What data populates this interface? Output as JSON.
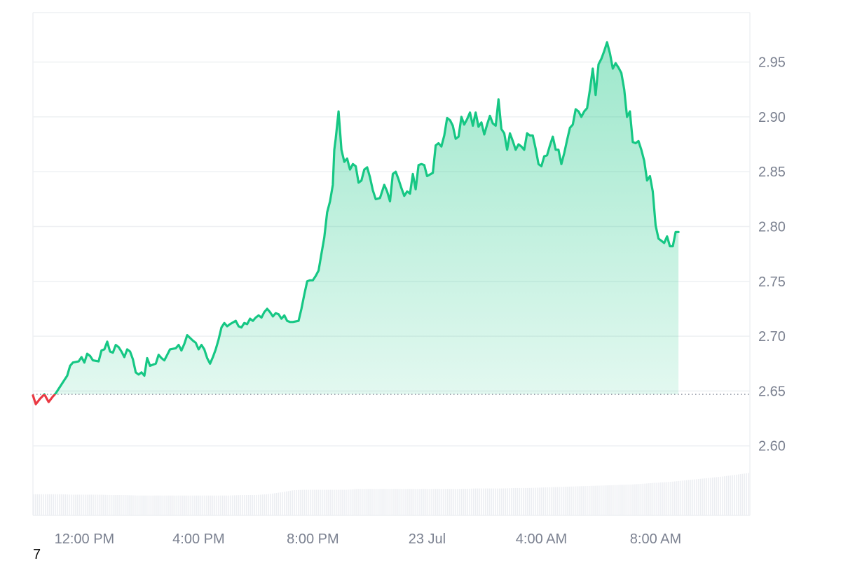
{
  "chart_data": {
    "type": "area",
    "y_ticks": [
      "2.95",
      "2.90",
      "2.85",
      "2.80",
      "2.75",
      "2.70",
      "2.65",
      "2.60"
    ],
    "x_ticks": [
      "12:00 PM",
      "4:00 PM",
      "8:00 PM",
      "23 Jul",
      "4:00 AM",
      "8:00 AM"
    ],
    "x_start_hours": 10.2,
    "x_end_hours": 35.3,
    "x_tick_hours": [
      12,
      16,
      20,
      24,
      28,
      32
    ],
    "ylim": [
      2.5366,
      2.9951
    ],
    "grid": true,
    "baseline": 2.647,
    "colors": {
      "up": "#16c784",
      "down": "#ea3943",
      "baseline": "#7b8190",
      "grid": "#eef0f3",
      "axis_text": "#7b8190",
      "volume": "#eceef2"
    },
    "volume_relative": [
      0.24,
      0.24,
      0.24,
      0.235,
      0.235,
      0.235,
      0.23,
      0.23,
      0.225,
      0.225,
      0.225,
      0.225,
      0.225,
      0.225,
      0.225,
      0.225,
      0.23,
      0.23,
      0.24,
      0.26,
      0.285,
      0.29,
      0.29,
      0.29,
      0.29,
      0.3,
      0.3,
      0.3,
      0.3,
      0.3,
      0.3,
      0.3,
      0.3,
      0.3,
      0.305,
      0.305,
      0.305,
      0.31,
      0.31,
      0.315,
      0.32,
      0.325,
      0.33,
      0.335,
      0.34,
      0.345,
      0.35,
      0.36,
      0.37,
      0.38,
      0.395,
      0.41,
      0.425,
      0.44,
      0.46,
      0.48
    ],
    "series": [
      {
        "points": [
          [
            10.2,
            2.646
          ],
          [
            10.3,
            2.638
          ],
          [
            10.45,
            2.643
          ],
          [
            10.6,
            2.647
          ],
          [
            10.75,
            2.64
          ],
          [
            10.9,
            2.645
          ],
          [
            11.0,
            2.648
          ],
          [
            11.1,
            2.652
          ],
          [
            11.3,
            2.66
          ],
          [
            11.4,
            2.664
          ],
          [
            11.5,
            2.673
          ],
          [
            11.6,
            2.676
          ],
          [
            11.8,
            2.677
          ],
          [
            11.9,
            2.681
          ],
          [
            12.0,
            2.676
          ],
          [
            12.1,
            2.684
          ],
          [
            12.2,
            2.682
          ],
          [
            12.3,
            2.678
          ],
          [
            12.5,
            2.677
          ],
          [
            12.6,
            2.687
          ],
          [
            12.7,
            2.688
          ],
          [
            12.8,
            2.695
          ],
          [
            12.9,
            2.686
          ],
          [
            13.0,
            2.685
          ],
          [
            13.1,
            2.692
          ],
          [
            13.2,
            2.69
          ],
          [
            13.3,
            2.686
          ],
          [
            13.4,
            2.681
          ],
          [
            13.5,
            2.688
          ],
          [
            13.6,
            2.686
          ],
          [
            13.7,
            2.679
          ],
          [
            13.8,
            2.667
          ],
          [
            13.9,
            2.665
          ],
          [
            14.0,
            2.667
          ],
          [
            14.1,
            2.664
          ],
          [
            14.2,
            2.68
          ],
          [
            14.3,
            2.673
          ],
          [
            14.5,
            2.675
          ],
          [
            14.6,
            2.683
          ],
          [
            14.7,
            2.68
          ],
          [
            14.8,
            2.678
          ],
          [
            14.9,
            2.683
          ],
          [
            15.0,
            2.688
          ],
          [
            15.2,
            2.689
          ],
          [
            15.3,
            2.692
          ],
          [
            15.4,
            2.687
          ],
          [
            15.5,
            2.693
          ],
          [
            15.6,
            2.701
          ],
          [
            15.8,
            2.696
          ],
          [
            15.9,
            2.694
          ],
          [
            16.0,
            2.688
          ],
          [
            16.1,
            2.692
          ],
          [
            16.2,
            2.688
          ],
          [
            16.3,
            2.68
          ],
          [
            16.4,
            2.675
          ],
          [
            16.5,
            2.681
          ],
          [
            16.6,
            2.688
          ],
          [
            16.7,
            2.697
          ],
          [
            16.8,
            2.708
          ],
          [
            16.9,
            2.712
          ],
          [
            17.0,
            2.709
          ],
          [
            17.1,
            2.711
          ],
          [
            17.3,
            2.714
          ],
          [
            17.4,
            2.709
          ],
          [
            17.5,
            2.708
          ],
          [
            17.6,
            2.712
          ],
          [
            17.7,
            2.711
          ],
          [
            17.8,
            2.716
          ],
          [
            17.9,
            2.714
          ],
          [
            18.0,
            2.717
          ],
          [
            18.1,
            2.719
          ],
          [
            18.2,
            2.717
          ],
          [
            18.3,
            2.722
          ],
          [
            18.4,
            2.725
          ],
          [
            18.5,
            2.722
          ],
          [
            18.6,
            2.718
          ],
          [
            18.7,
            2.721
          ],
          [
            18.8,
            2.72
          ],
          [
            18.9,
            2.716
          ],
          [
            19.0,
            2.719
          ],
          [
            19.1,
            2.714
          ],
          [
            19.2,
            2.713
          ],
          [
            19.3,
            2.713
          ],
          [
            19.5,
            2.714
          ],
          [
            19.6,
            2.725
          ],
          [
            19.7,
            2.738
          ],
          [
            19.8,
            2.75
          ],
          [
            19.9,
            2.751
          ],
          [
            20.0,
            2.751
          ],
          [
            20.1,
            2.755
          ],
          [
            20.2,
            2.76
          ],
          [
            20.3,
            2.775
          ],
          [
            20.4,
            2.79
          ],
          [
            20.5,
            2.813
          ],
          [
            20.6,
            2.823
          ],
          [
            20.7,
            2.838
          ],
          [
            20.75,
            2.87
          ],
          [
            20.8,
            2.88
          ],
          [
            20.9,
            2.905
          ],
          [
            21.0,
            2.87
          ],
          [
            21.1,
            2.859
          ],
          [
            21.2,
            2.862
          ],
          [
            21.3,
            2.852
          ],
          [
            21.4,
            2.857
          ],
          [
            21.5,
            2.855
          ],
          [
            21.6,
            2.84
          ],
          [
            21.7,
            2.842
          ],
          [
            21.8,
            2.852
          ],
          [
            21.9,
            2.854
          ],
          [
            22.0,
            2.845
          ],
          [
            22.1,
            2.833
          ],
          [
            22.2,
            2.825
          ],
          [
            22.35,
            2.826
          ],
          [
            22.5,
            2.838
          ],
          [
            22.6,
            2.832
          ],
          [
            22.7,
            2.823
          ],
          [
            22.8,
            2.848
          ],
          [
            22.9,
            2.85
          ],
          [
            23.0,
            2.843
          ],
          [
            23.1,
            2.835
          ],
          [
            23.2,
            2.828
          ],
          [
            23.3,
            2.832
          ],
          [
            23.4,
            2.83
          ],
          [
            23.5,
            2.848
          ],
          [
            23.6,
            2.834
          ],
          [
            23.7,
            2.856
          ],
          [
            23.8,
            2.857
          ],
          [
            23.9,
            2.856
          ],
          [
            24.0,
            2.846
          ],
          [
            24.2,
            2.849
          ],
          [
            24.3,
            2.874
          ],
          [
            24.4,
            2.876
          ],
          [
            24.5,
            2.873
          ],
          [
            24.6,
            2.883
          ],
          [
            24.7,
            2.899
          ],
          [
            24.8,
            2.897
          ],
          [
            24.9,
            2.892
          ],
          [
            25.0,
            2.88
          ],
          [
            25.1,
            2.882
          ],
          [
            25.2,
            2.9
          ],
          [
            25.3,
            2.893
          ],
          [
            25.4,
            2.898
          ],
          [
            25.5,
            2.904
          ],
          [
            25.6,
            2.892
          ],
          [
            25.7,
            2.904
          ],
          [
            25.8,
            2.891
          ],
          [
            25.9,
            2.895
          ],
          [
            26.0,
            2.884
          ],
          [
            26.1,
            2.893
          ],
          [
            26.2,
            2.901
          ],
          [
            26.3,
            2.894
          ],
          [
            26.4,
            2.892
          ],
          [
            26.5,
            2.916
          ],
          [
            26.6,
            2.889
          ],
          [
            26.7,
            2.885
          ],
          [
            26.8,
            2.87
          ],
          [
            26.9,
            2.885
          ],
          [
            27.0,
            2.878
          ],
          [
            27.1,
            2.87
          ],
          [
            27.2,
            2.875
          ],
          [
            27.3,
            2.873
          ],
          [
            27.4,
            2.87
          ],
          [
            27.5,
            2.885
          ],
          [
            27.6,
            2.883
          ],
          [
            27.7,
            2.883
          ],
          [
            27.8,
            2.871
          ],
          [
            27.9,
            2.857
          ],
          [
            28.0,
            2.855
          ],
          [
            28.1,
            2.864
          ],
          [
            28.2,
            2.865
          ],
          [
            28.3,
            2.874
          ],
          [
            28.4,
            2.882
          ],
          [
            28.5,
            2.87
          ],
          [
            28.6,
            2.87
          ],
          [
            28.7,
            2.857
          ],
          [
            28.8,
            2.867
          ],
          [
            28.9,
            2.879
          ],
          [
            29.0,
            2.89
          ],
          [
            29.1,
            2.893
          ],
          [
            29.2,
            2.907
          ],
          [
            29.3,
            2.905
          ],
          [
            29.4,
            2.9
          ],
          [
            29.5,
            2.905
          ],
          [
            29.6,
            2.908
          ],
          [
            29.7,
            2.925
          ],
          [
            29.8,
            2.944
          ],
          [
            29.9,
            2.92
          ],
          [
            30.0,
            2.948
          ],
          [
            30.1,
            2.953
          ],
          [
            30.2,
            2.96
          ],
          [
            30.3,
            2.968
          ],
          [
            30.4,
            2.958
          ],
          [
            30.5,
            2.944
          ],
          [
            30.6,
            2.949
          ],
          [
            30.7,
            2.945
          ],
          [
            30.8,
            2.94
          ],
          [
            30.9,
            2.925
          ],
          [
            31.0,
            2.9
          ],
          [
            31.1,
            2.905
          ],
          [
            31.2,
            2.877
          ],
          [
            31.3,
            2.876
          ],
          [
            31.4,
            2.878
          ],
          [
            31.5,
            2.87
          ],
          [
            31.6,
            2.86
          ],
          [
            31.7,
            2.842
          ],
          [
            31.8,
            2.846
          ],
          [
            31.9,
            2.832
          ],
          [
            32.0,
            2.801
          ],
          [
            32.1,
            2.789
          ],
          [
            32.2,
            2.787
          ],
          [
            32.3,
            2.785
          ],
          [
            32.4,
            2.791
          ],
          [
            32.5,
            2.782
          ],
          [
            32.6,
            2.782
          ],
          [
            32.7,
            2.795
          ],
          [
            32.8,
            2.795
          ]
        ]
      }
    ]
  },
  "footer_note": "7"
}
